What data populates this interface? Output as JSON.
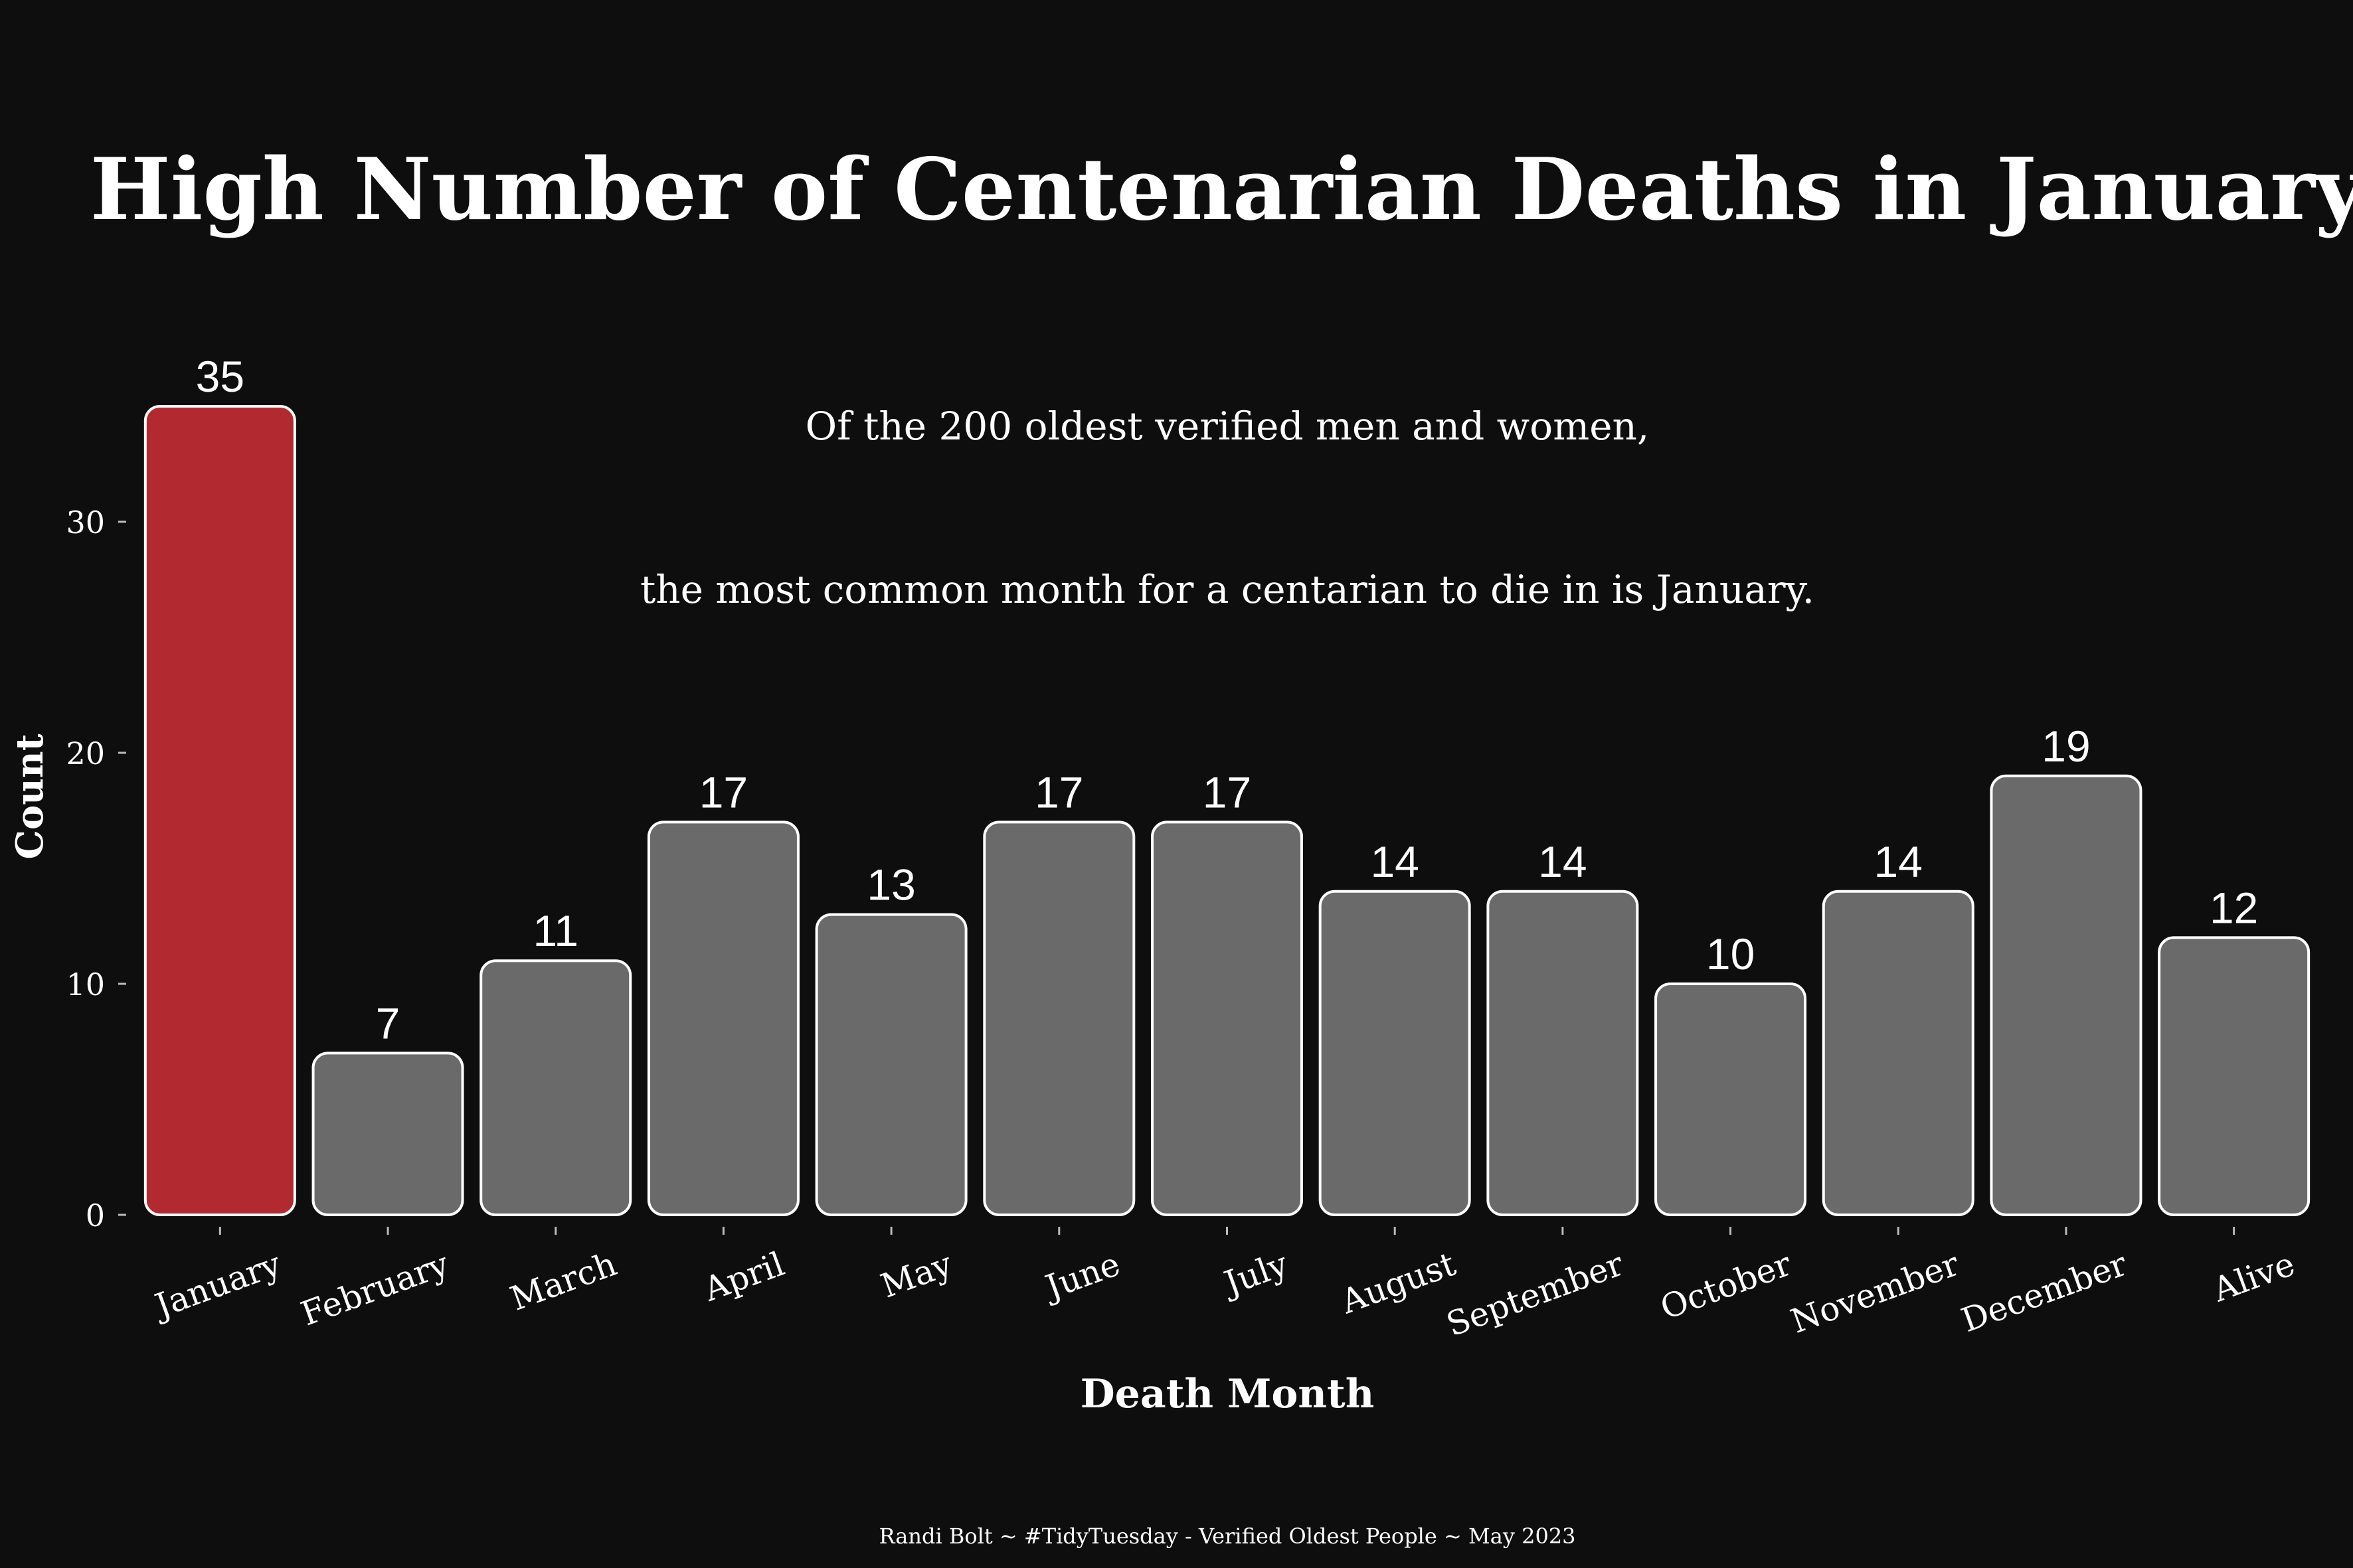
{
  "chart_data": {
    "type": "bar",
    "title": "High Number of Centenarian Deaths in January",
    "subtitle_lines": [
      "Of the 200 oldest verified men and women,",
      "the most common month for a centarian to die in is January."
    ],
    "xlabel": "Death Month",
    "ylabel": "Count",
    "caption": "Randi Bolt ~ #TidyTuesday - Verified Oldest People ~ May 2023",
    "categories": [
      "January",
      "February",
      "March",
      "April",
      "May",
      "June",
      "July",
      "August",
      "September",
      "October",
      "November",
      "December",
      "Alive"
    ],
    "values": [
      35,
      7,
      11,
      17,
      13,
      17,
      17,
      14,
      14,
      10,
      14,
      19,
      12
    ],
    "value_labels": [
      "35",
      "7",
      "11",
      "17",
      "13",
      "17",
      "17",
      "14",
      "14",
      "10",
      "14",
      "19",
      "12"
    ],
    "y_ticks": [
      0,
      10,
      20,
      30
    ],
    "y_tick_labels": [
      "0",
      "10",
      "20",
      "30"
    ],
    "ylim": [
      0,
      35
    ],
    "grid": false,
    "highlight_category": "January",
    "colors": {
      "background": "#0e0e0e",
      "highlight": "#b22a30",
      "bar": "#6b6a6b",
      "bar_outline": "#ffffff",
      "text": "#ffffff"
    }
  }
}
